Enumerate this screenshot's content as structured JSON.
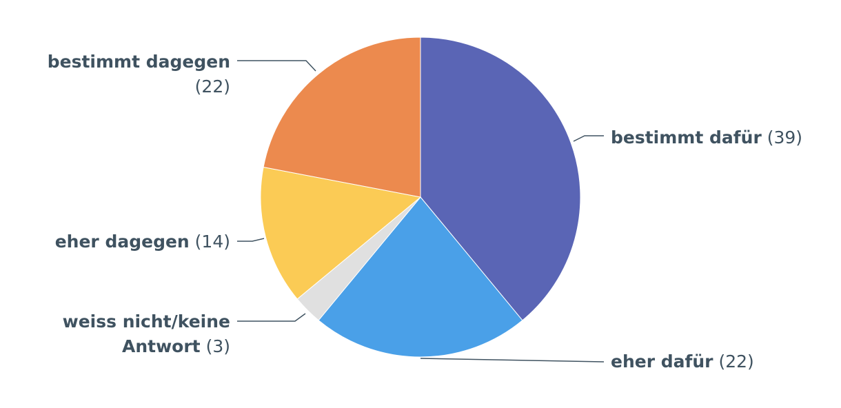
{
  "chart_data": {
    "type": "pie",
    "title": "",
    "start_angle_deg": 0,
    "direction": "clockwise",
    "slices": [
      {
        "label": "bestimmt dafür",
        "value_text": "(39)",
        "value": 39,
        "color": "#5a65b5"
      },
      {
        "label": "eher dafür",
        "value_text": "(22)",
        "value": 22,
        "color": "#4aa0e8"
      },
      {
        "label": "weiss nicht/keine Antwort",
        "label_lines": [
          "weiss nicht/keine",
          "Antwort"
        ],
        "value_text": "(3)",
        "value": 3,
        "color": "#e0e0e0"
      },
      {
        "label": "eher dagegen",
        "value_text": "(14)",
        "value": 14,
        "color": "#fbcb55"
      },
      {
        "label": "bestimmt dagegen",
        "value_text": "(22)",
        "value": 22,
        "color": "#ec8a4e"
      }
    ],
    "label_color": "#3f5260",
    "connector_color": "#3f5260"
  }
}
